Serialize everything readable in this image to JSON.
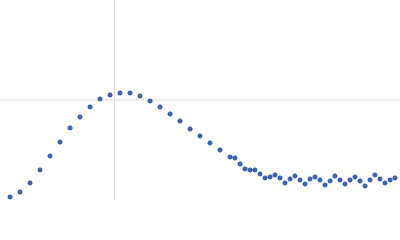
{
  "chart_data": {
    "type": "scatter",
    "x": [
      0.088,
      0.175,
      0.263,
      0.35,
      0.438,
      0.525,
      0.613,
      0.7,
      0.788,
      0.875,
      0.963,
      1.05,
      1.138,
      1.225,
      1.313,
      1.4,
      1.488,
      1.575,
      1.663,
      1.75,
      1.838,
      1.925,
      2.013,
      2.1,
      2.188,
      2.275,
      2.363,
      2.45,
      2.538,
      2.625,
      2.713,
      2.8,
      2.888,
      2.975,
      3.063,
      3.15,
      3.238,
      3.325,
      3.413,
      2.056,
      2.144,
      2.231,
      2.319,
      2.406,
      2.494,
      2.581,
      2.669,
      2.756,
      2.844,
      2.931,
      3.019,
      3.106,
      3.194,
      3.281,
      3.369,
      3.456
    ],
    "values": [
      0.03,
      0.08,
      0.17,
      0.3,
      0.44,
      0.58,
      0.72,
      0.83,
      0.93,
      1.01,
      1.05,
      1.07,
      1.07,
      1.04,
      0.99,
      0.93,
      0.86,
      0.79,
      0.71,
      0.64,
      0.57,
      0.5,
      0.43,
      0.36,
      0.3,
      0.26,
      0.23,
      0.22,
      0.21,
      0.2,
      0.21,
      0.2,
      0.19,
      0.2,
      0.2,
      0.19,
      0.2,
      0.21,
      0.2,
      0.42,
      0.31,
      0.3,
      0.22,
      0.25,
      0.17,
      0.24,
      0.16,
      0.23,
      0.15,
      0.24,
      0.16,
      0.23,
      0.14,
      0.25,
      0.17,
      0.22
    ],
    "color": "#3a62ad",
    "xlim": [
      0,
      3.5
    ],
    "ylim": [
      0,
      2
    ],
    "xticks": [
      1
    ],
    "yticks": [
      1
    ],
    "grid": true
  }
}
